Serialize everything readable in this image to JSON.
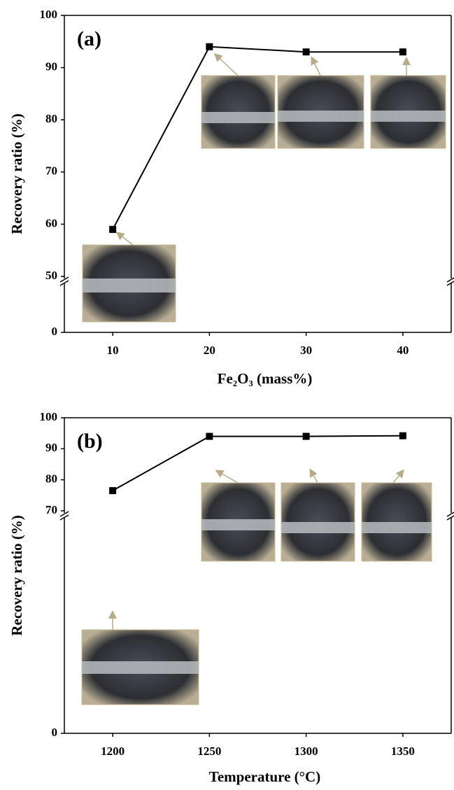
{
  "chart_data": [
    {
      "type": "line",
      "title": "(a)",
      "x_label": "Fe₂O₃ (mass%)",
      "y_label": "Recovery ratio (%)",
      "x": [
        10,
        20,
        30,
        40
      ],
      "series": [
        {
          "color": "#000000",
          "values": [
            59,
            94,
            93,
            93
          ]
        }
      ],
      "marker": "square",
      "xlim": [
        5,
        45
      ],
      "xticks": [
        10,
        20,
        30,
        40
      ],
      "ylim": [
        0,
        100
      ],
      "ybreak": 50,
      "yticks": [
        0,
        50,
        60,
        70,
        80,
        90,
        100
      ]
    },
    {
      "type": "line",
      "title": "(b)",
      "x_label": "Temperature (°C)",
      "y_label": "Recovery ratio (%)",
      "x": [
        1200,
        1250,
        1300,
        1350
      ],
      "series": [
        {
          "color": "#000000",
          "values": [
            76.5,
            94,
            94,
            94.2
          ]
        }
      ],
      "marker": "square",
      "xlim": [
        1175,
        1375
      ],
      "xticks": [
        1200,
        1250,
        1300,
        1350
      ],
      "ylim": [
        0,
        100
      ],
      "ybreak": 70,
      "yticks": [
        0,
        70,
        80,
        90,
        100
      ]
    }
  ]
}
